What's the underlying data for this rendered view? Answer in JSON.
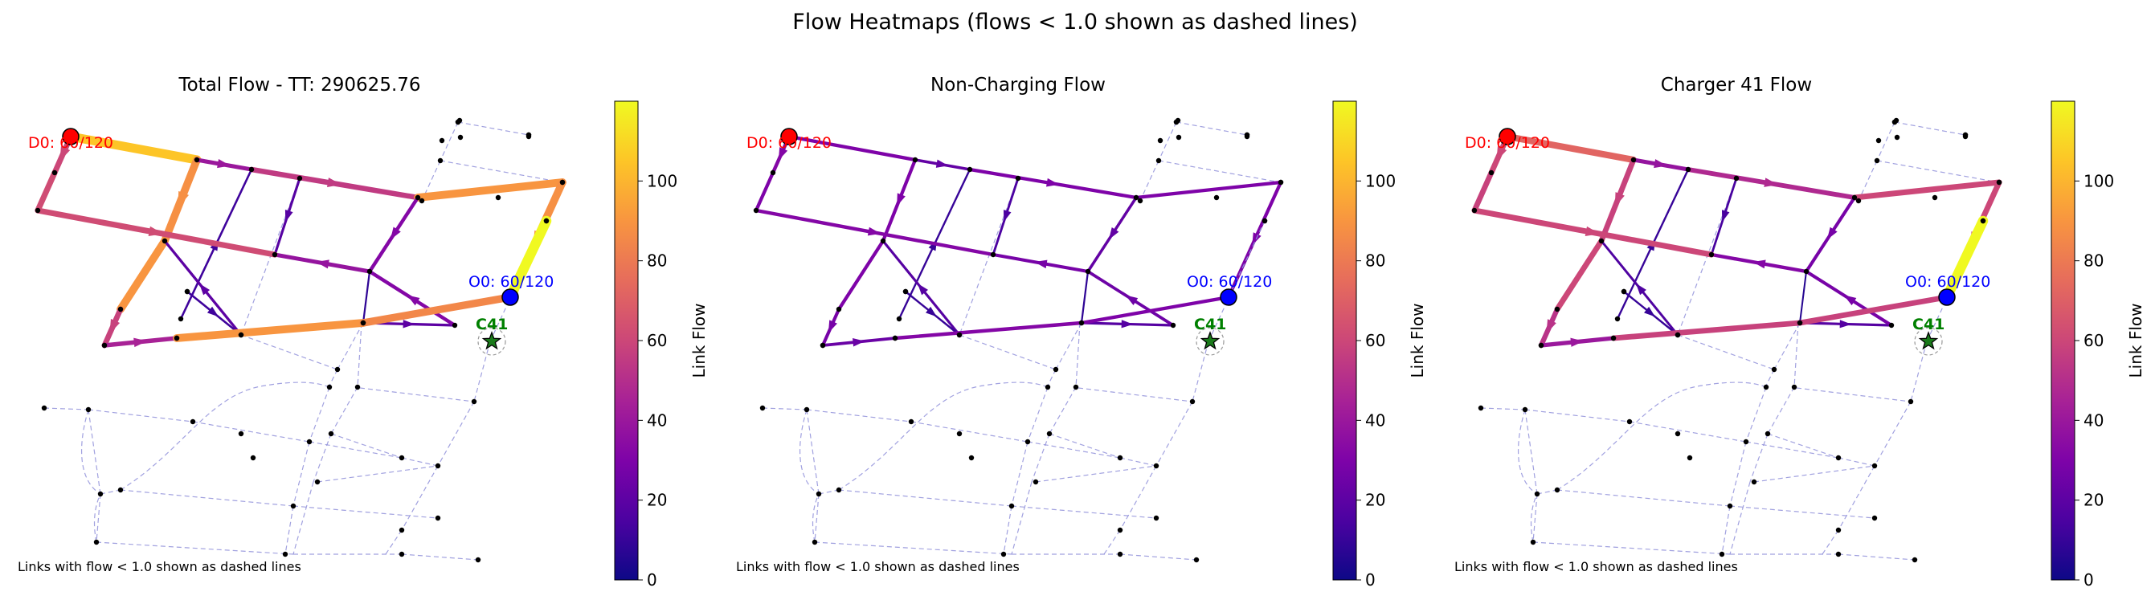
{
  "figure": {
    "title": "Flow Heatmaps (flows < 1.0 shown as dashed lines)"
  },
  "chart_data": [
    {
      "type": "network-heatmap",
      "title": "Total Flow - TT: 290625.76",
      "note": "Links with flow < 1.0 shown as dashed lines",
      "colorbar": {
        "label": "Link Flow",
        "ticks": [
          0,
          20,
          40,
          60,
          80,
          100
        ],
        "range": [
          0,
          120
        ],
        "colormap": "plasma"
      },
      "origin": {
        "label": "O0: 60/120",
        "color": "#0000ff"
      },
      "destination": {
        "label": "D0: 60/120",
        "color": "#ff0000"
      },
      "charger": {
        "label": "C41",
        "color": "#008000"
      },
      "links": [
        {
          "id": "A",
          "flow": 105
        },
        {
          "id": "B",
          "flow": 60
        },
        {
          "id": "C",
          "flow": 62
        },
        {
          "id": "D",
          "flow": 88
        },
        {
          "id": "E",
          "flow": 90
        },
        {
          "id": "F",
          "flow": 58
        },
        {
          "id": "G",
          "flow": 40
        },
        {
          "id": "H",
          "flow": 55
        },
        {
          "id": "I",
          "flow": 12
        },
        {
          "id": "J",
          "flow": 18
        },
        {
          "id": "K",
          "flow": 90
        },
        {
          "id": "L",
          "flow": 88
        },
        {
          "id": "M",
          "flow": 120
        },
        {
          "id": "N",
          "flow": 20
        },
        {
          "id": "O",
          "flow": 32
        },
        {
          "id": "P",
          "flow": 38
        },
        {
          "id": "Q",
          "flow": 20
        },
        {
          "id": "R",
          "flow": 12
        },
        {
          "id": "S",
          "flow": 8
        },
        {
          "id": "T",
          "flow": 45
        },
        {
          "id": "U",
          "flow": 90
        },
        {
          "id": "V",
          "flow": 32
        },
        {
          "id": "W",
          "flow": 85
        },
        {
          "id": "X",
          "flow": 62
        }
      ]
    },
    {
      "type": "network-heatmap",
      "title": "Non-Charging Flow",
      "note": "Links with flow < 1.0 shown as dashed lines",
      "colorbar": {
        "label": "Link Flow",
        "ticks": [
          0,
          20,
          40,
          60,
          80,
          100
        ],
        "range": [
          0,
          120
        ],
        "colormap": "plasma"
      },
      "origin": {
        "label": "O0: 60/120",
        "color": "#0000ff"
      },
      "destination": {
        "label": "D0: 60/120",
        "color": "#ff0000"
      },
      "charger": {
        "label": "C41",
        "color": "#008000"
      },
      "links": [
        {
          "id": "A",
          "flow": 30
        },
        {
          "id": "B",
          "flow": 32
        },
        {
          "id": "C",
          "flow": 30
        },
        {
          "id": "D",
          "flow": 30
        },
        {
          "id": "E",
          "flow": 30
        },
        {
          "id": "F",
          "flow": 28
        },
        {
          "id": "G",
          "flow": 22
        },
        {
          "id": "H",
          "flow": 30
        },
        {
          "id": "I",
          "flow": 10
        },
        {
          "id": "J",
          "flow": 15
        },
        {
          "id": "K",
          "flow": 30
        },
        {
          "id": "L",
          "flow": 30
        },
        {
          "id": "M",
          "flow": 0
        },
        {
          "id": "N",
          "flow": 18
        },
        {
          "id": "O",
          "flow": 25
        },
        {
          "id": "P",
          "flow": 28
        },
        {
          "id": "Q",
          "flow": 18
        },
        {
          "id": "R",
          "flow": 10
        },
        {
          "id": "S",
          "flow": 8
        },
        {
          "id": "T",
          "flow": 24
        },
        {
          "id": "U",
          "flow": 32
        },
        {
          "id": "V",
          "flow": 22
        },
        {
          "id": "W",
          "flow": 30
        },
        {
          "id": "X",
          "flow": 32
        }
      ]
    },
    {
      "type": "network-heatmap",
      "title": "Charger 41 Flow",
      "note": "Links with flow < 1.0 shown as dashed lines",
      "colorbar": {
        "label": "Link Flow",
        "ticks": [
          0,
          20,
          40,
          60,
          80,
          100
        ],
        "range": [
          0,
          120
        ],
        "colormap": "plasma"
      },
      "origin": {
        "label": "O0: 60/120",
        "color": "#0000ff"
      },
      "destination": {
        "label": "D0: 60/120",
        "color": "#ff0000"
      },
      "charger": {
        "label": "C41",
        "color": "#008000"
      },
      "links": [
        {
          "id": "A",
          "flow": 72
        },
        {
          "id": "B",
          "flow": 60
        },
        {
          "id": "C",
          "flow": 58
        },
        {
          "id": "D",
          "flow": 58
        },
        {
          "id": "E",
          "flow": 60
        },
        {
          "id": "F",
          "flow": 52
        },
        {
          "id": "G",
          "flow": 38
        },
        {
          "id": "H",
          "flow": 48
        },
        {
          "id": "I",
          "flow": 10
        },
        {
          "id": "J",
          "flow": 14
        },
        {
          "id": "K",
          "flow": 60
        },
        {
          "id": "L",
          "flow": 60
        },
        {
          "id": "M",
          "flow": 120
        },
        {
          "id": "N",
          "flow": 18
        },
        {
          "id": "O",
          "flow": 28
        },
        {
          "id": "P",
          "flow": 32
        },
        {
          "id": "Q",
          "flow": 16
        },
        {
          "id": "R",
          "flow": 10
        },
        {
          "id": "S",
          "flow": 6
        },
        {
          "id": "T",
          "flow": 40
        },
        {
          "id": "U",
          "flow": 58
        },
        {
          "id": "V",
          "flow": 28
        },
        {
          "id": "W",
          "flow": 58
        },
        {
          "id": "X",
          "flow": 60
        }
      ]
    }
  ]
}
